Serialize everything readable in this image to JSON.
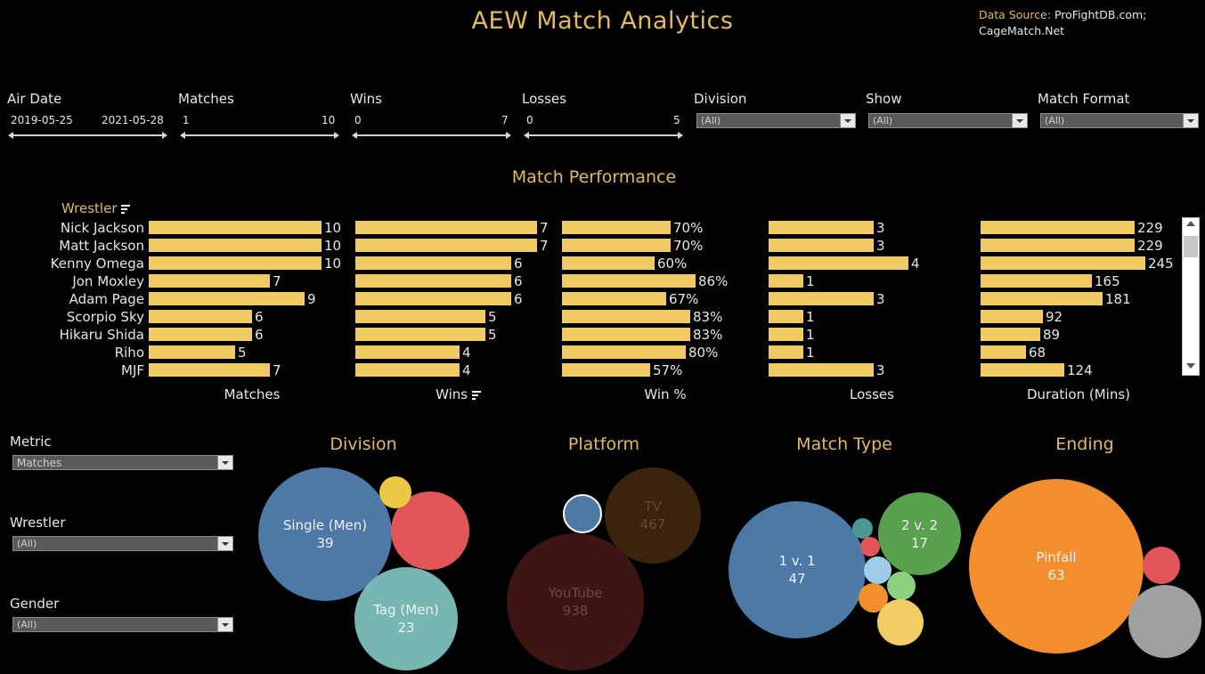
{
  "header": {
    "title": "AEW Match Analytics",
    "source_label": "Data Source:",
    "source_text": "ProFightDB.com;",
    "source_text2": "CageMatch.Net"
  },
  "filters": {
    "air_date": {
      "label": "Air Date",
      "min": "2019-05-25",
      "max": "2021-05-28"
    },
    "matches": {
      "label": "Matches",
      "min": "1",
      "max": "10"
    },
    "wins": {
      "label": "Wins",
      "min": "0",
      "max": "7"
    },
    "losses": {
      "label": "Losses",
      "min": "0",
      "max": "5"
    },
    "division": {
      "label": "Division",
      "value": "(All)"
    },
    "show": {
      "label": "Show",
      "value": "(All)"
    },
    "match_format": {
      "label": "Match Format",
      "value": "(All)"
    }
  },
  "performance": {
    "title": "Match Performance",
    "row_header": "Wrestler",
    "wrestlers": [
      "Nick Jackson",
      "Matt Jackson",
      "Kenny Omega",
      "Jon Moxley",
      "Adam Page",
      "Scorpio Sky",
      "Hikaru Shida",
      "Riho",
      "MJF"
    ],
    "matches": [
      "10",
      "10",
      "10",
      "7",
      "9",
      "6",
      "6",
      "5",
      "7"
    ],
    "wins": [
      "7",
      "7",
      "6",
      "6",
      "6",
      "5",
      "5",
      "4",
      "4"
    ],
    "win_pct": [
      "70%",
      "70%",
      "60%",
      "86%",
      "67%",
      "83%",
      "83%",
      "80%",
      "57%"
    ],
    "losses": [
      "3",
      "3",
      "4",
      "1",
      "3",
      "1",
      "1",
      "1",
      "3"
    ],
    "duration": [
      "229",
      "229",
      "245",
      "165",
      "181",
      "92",
      "89",
      "68",
      "124"
    ],
    "axes": {
      "matches": "Matches",
      "wins": "Wins",
      "win_pct": "Win %",
      "losses": "Losses",
      "duration": "Duration (Mins)"
    }
  },
  "controls": {
    "metric": {
      "label": "Metric",
      "value": "Matches"
    },
    "wrestler": {
      "label": "Wrestler",
      "value": "(All)"
    },
    "gender": {
      "label": "Gender",
      "value": "(All)"
    }
  },
  "bubbles": {
    "division": {
      "title": "Division",
      "single_name": "Single (Men)",
      "single_value": "39",
      "tag_name": "Tag (Men)",
      "tag_value": "23"
    },
    "platform": {
      "title": "Platform",
      "tv_name": "TV",
      "tv_value": "467",
      "youtube_name": "YouTube",
      "youtube_value": "938"
    },
    "match_type": {
      "title": "Match Type",
      "one_name": "1 v. 1",
      "one_value": "47",
      "two_name": "2 v. 2",
      "two_value": "17"
    },
    "ending": {
      "title": "Ending",
      "pinfall_name": "Pinfall",
      "pinfall_value": "63"
    }
  },
  "colors": {
    "accent": "#e3b961",
    "bar": "#f2ca63",
    "blue": "#4e79a7",
    "red": "#e15759",
    "teal": "#76b7b2",
    "yellow": "#edc948",
    "green": "#59a14f",
    "orange": "#f28e2b",
    "gray": "#a0a0a0"
  }
}
